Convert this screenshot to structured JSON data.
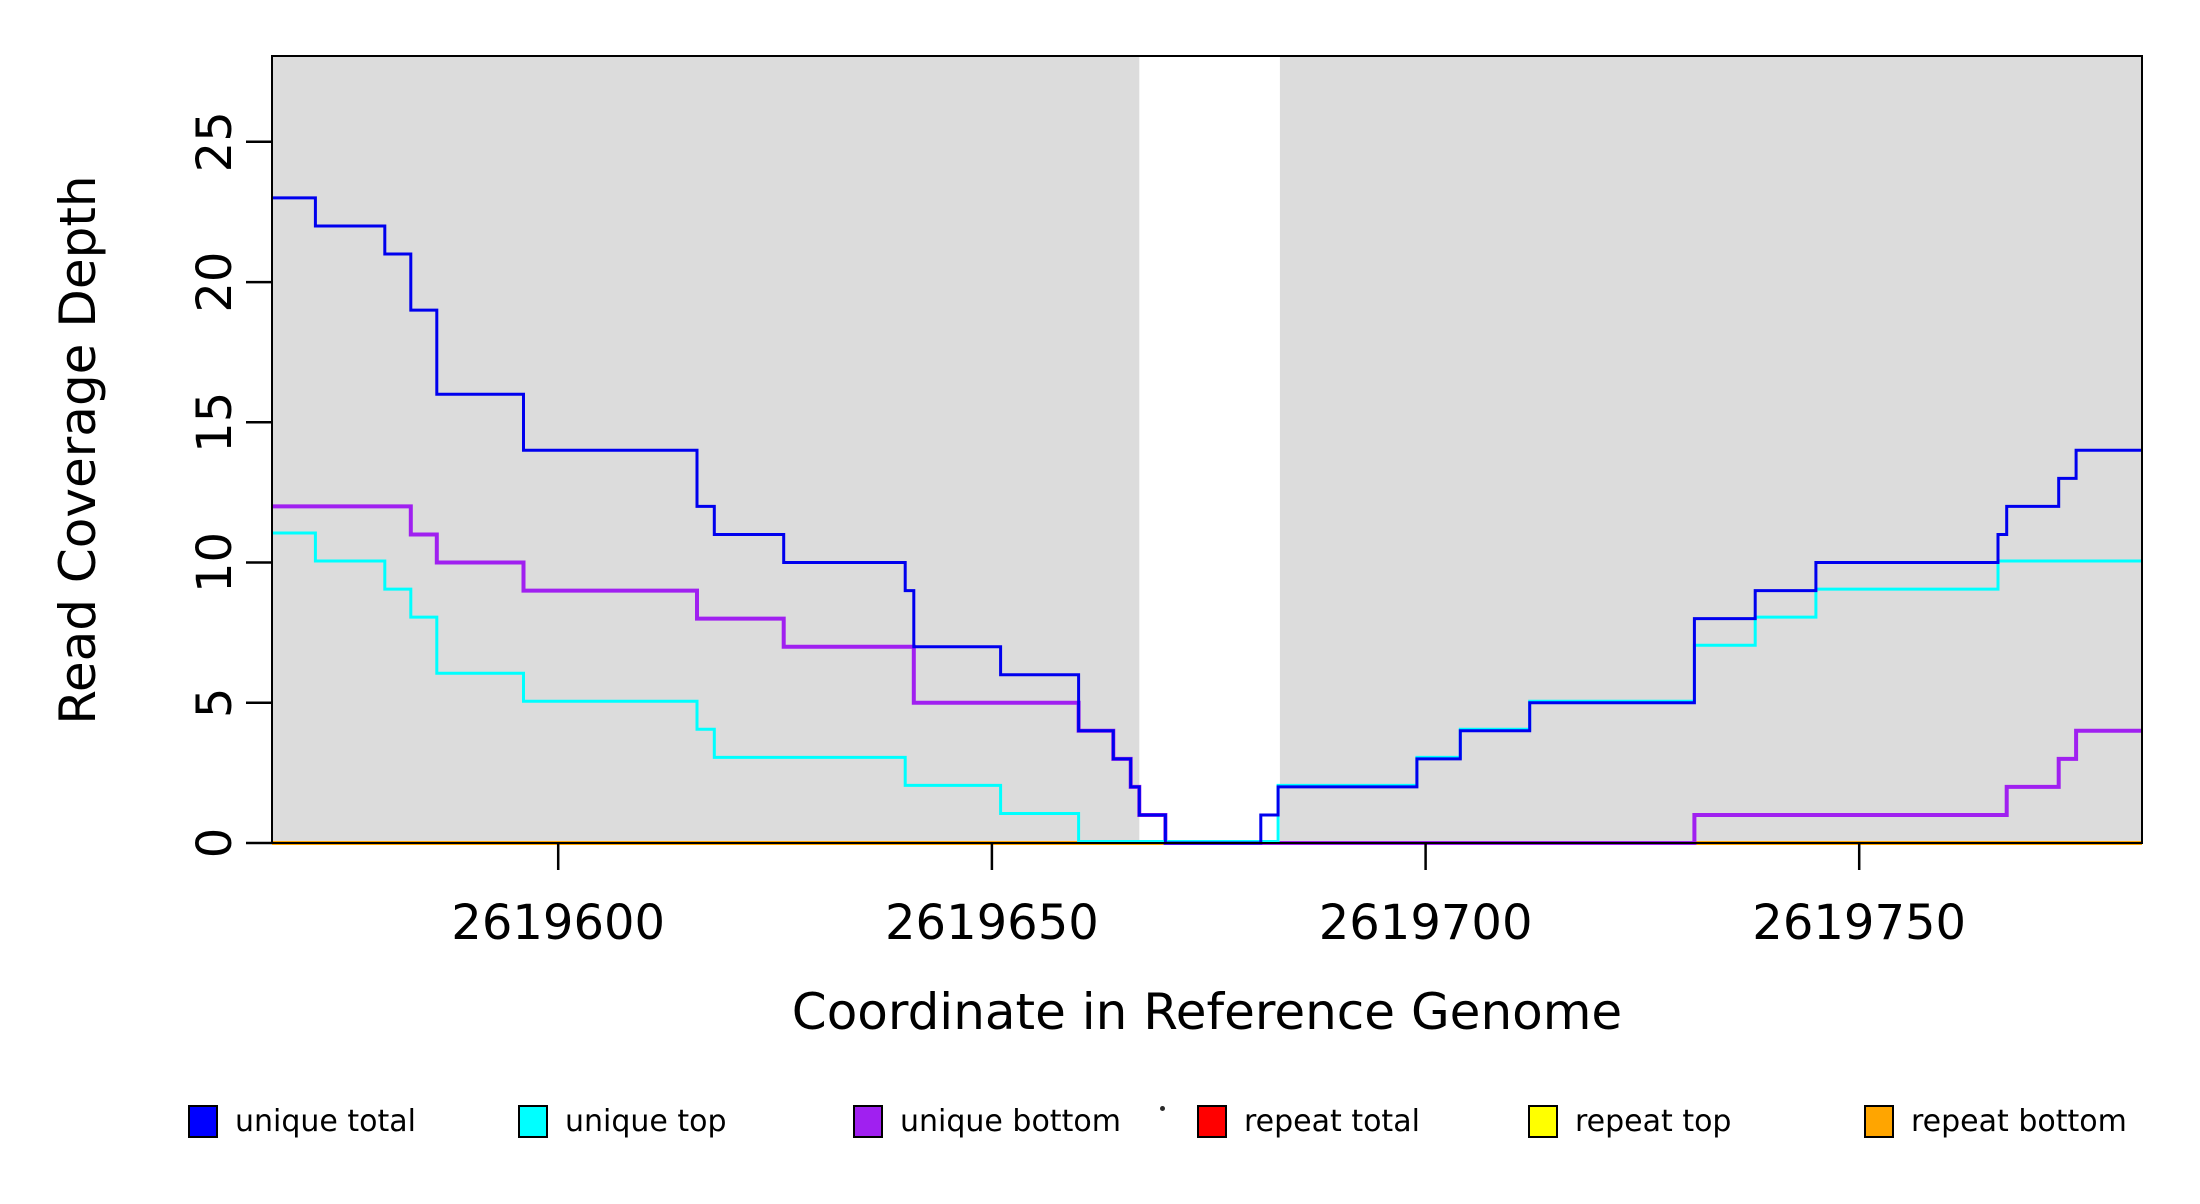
{
  "titles": {
    "x_axis": "Coordinate in Reference Genome",
    "y_axis": "Read Coverage Depth"
  },
  "legend": {
    "items": [
      {
        "label": "unique total",
        "color": "#0000FF"
      },
      {
        "label": "unique top",
        "color": "#00FFFF"
      },
      {
        "label": "unique bottom",
        "color": "#A020F0"
      },
      {
        "label": "repeat total",
        "color": "#FF0000"
      },
      {
        "label": "repeat top",
        "color": "#FFFF00"
      },
      {
        "label": "repeat bottom",
        "color": "#FFA500"
      }
    ]
  },
  "chart_data": {
    "type": "line",
    "step_mode": "post",
    "title": "",
    "xlabel": "Coordinate in Reference Genome",
    "ylabel": "Read Coverage Depth",
    "grid": false,
    "legend_position": "bottom",
    "x_axis": {
      "min": 2619567,
      "max": 2619782.6,
      "ticks": [
        2619600,
        2619650,
        2619700,
        2619750
      ]
    },
    "y_axis": {
      "min": 0,
      "max": 28.06,
      "ticks": [
        0,
        5,
        10,
        15,
        20,
        25
      ]
    },
    "shaded_regions": [
      {
        "start": 2619567,
        "end": 2619667,
        "color": "#DCDCDC",
        "meaning": "unique region"
      },
      {
        "start": 2619683.2,
        "end": 2619782.6,
        "color": "#DCDCDC",
        "meaning": "unique region"
      }
    ],
    "gap_region": {
      "start": 2619667,
      "end": 2619683.2,
      "color": "#FFFFFF"
    },
    "draw_order": [
      "repeat total",
      "repeat top",
      "repeat bottom",
      "unique bottom",
      "unique top",
      "unique total"
    ],
    "series": [
      {
        "name": "unique total",
        "color": "#0000EE",
        "points": [
          [
            2619567,
            23
          ],
          [
            2619572,
            22
          ],
          [
            2619580,
            21
          ],
          [
            2619583,
            19
          ],
          [
            2619586,
            16
          ],
          [
            2619596,
            14
          ],
          [
            2619616,
            12
          ],
          [
            2619618,
            11
          ],
          [
            2619626,
            10
          ],
          [
            2619640,
            9
          ],
          [
            2619641,
            7
          ],
          [
            2619651,
            6
          ],
          [
            2619660,
            4
          ],
          [
            2619664,
            3
          ],
          [
            2619666,
            2
          ],
          [
            2619667,
            1
          ],
          [
            2619670,
            0
          ],
          [
            2619681,
            1
          ],
          [
            2619683,
            2
          ],
          [
            2619699,
            3
          ],
          [
            2619704,
            4
          ],
          [
            2619712,
            5
          ],
          [
            2619731,
            8
          ],
          [
            2619738,
            9
          ],
          [
            2619745,
            10
          ],
          [
            2619766,
            11
          ],
          [
            2619767,
            12
          ],
          [
            2619773,
            13
          ],
          [
            2619775,
            14
          ]
        ]
      },
      {
        "name": "unique top",
        "color": "#00FFFF",
        "points": [
          [
            2619567,
            11
          ],
          [
            2619572,
            10
          ],
          [
            2619580,
            9
          ],
          [
            2619583,
            8
          ],
          [
            2619586,
            6
          ],
          [
            2619596,
            5
          ],
          [
            2619616,
            4
          ],
          [
            2619618,
            3
          ],
          [
            2619640,
            2
          ],
          [
            2619651,
            1
          ],
          [
            2619660,
            0
          ],
          [
            2619683,
            2
          ],
          [
            2619699,
            3
          ],
          [
            2619704,
            4
          ],
          [
            2619712,
            5
          ],
          [
            2619731,
            7
          ],
          [
            2619738,
            8
          ],
          [
            2619745,
            9
          ],
          [
            2619766,
            10
          ]
        ]
      },
      {
        "name": "unique bottom",
        "color": "#A020F0",
        "points": [
          [
            2619567,
            12
          ],
          [
            2619583,
            11
          ],
          [
            2619586,
            10
          ],
          [
            2619596,
            9
          ],
          [
            2619616,
            8
          ],
          [
            2619626,
            7
          ],
          [
            2619641,
            5
          ],
          [
            2619660,
            4
          ],
          [
            2619664,
            3
          ],
          [
            2619666,
            2
          ],
          [
            2619667,
            1
          ],
          [
            2619670,
            0
          ],
          [
            2619731,
            1
          ],
          [
            2619767,
            2
          ],
          [
            2619773,
            3
          ],
          [
            2619775,
            4
          ]
        ]
      },
      {
        "name": "repeat total",
        "color": "#FF0000",
        "points": [
          [
            2619567,
            0
          ]
        ]
      },
      {
        "name": "repeat top",
        "color": "#FFFF00",
        "points": [
          [
            2619567,
            0
          ]
        ]
      },
      {
        "name": "repeat bottom",
        "color": "#FFA500",
        "points": [
          [
            2619567,
            0
          ]
        ]
      }
    ]
  }
}
